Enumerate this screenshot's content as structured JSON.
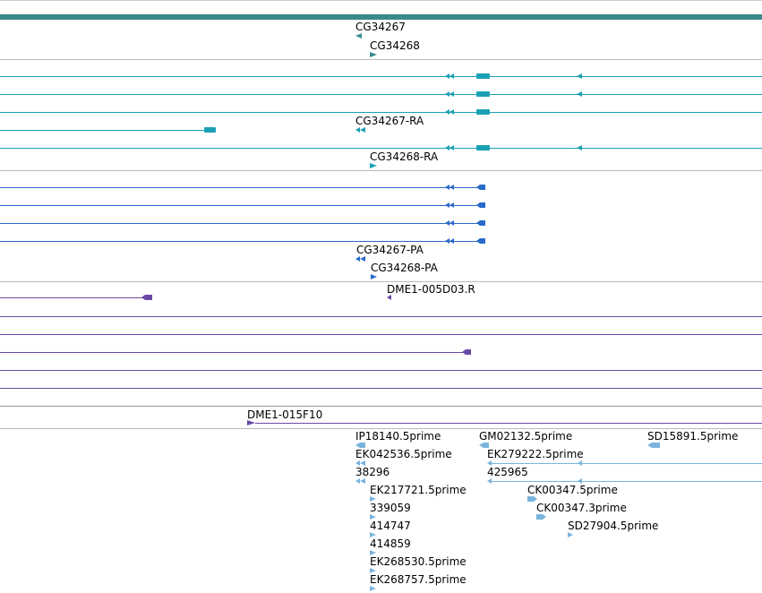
{
  "colors": {
    "gene": "#3a8a8a",
    "transcript": "#1aa0b4",
    "protein": "#2a6ac8",
    "clone": "#6a4aa8",
    "est": "#7ab4dc",
    "divider": "#bbbbbb",
    "top_bar": "#3a8a8a"
  },
  "tracks": {
    "genes": {
      "labels": [
        "CG34267",
        "CG34268"
      ]
    },
    "transcripts": {
      "labels": [
        "CG34267-RA",
        "CG34268-RA"
      ]
    },
    "proteins": {
      "labels": [
        "CG34267-PA",
        "CG34268-PA"
      ]
    },
    "clones": {
      "labels": [
        "DME1-005D03.R",
        "DME1-015F10"
      ]
    },
    "ests": {
      "labels": [
        "IP18140.5prime",
        "EK042536.5prime",
        "38296",
        "EK217721.5prime",
        "339059",
        "414747",
        "414859",
        "EK268530.5prime",
        "EK268757.5prime",
        "GM02132.5prime",
        "EK279222.5prime",
        "425965",
        "CK00347.5prime",
        "CK00347.3prime",
        "SD27904.5prime",
        "SD15891.5prime"
      ]
    }
  }
}
